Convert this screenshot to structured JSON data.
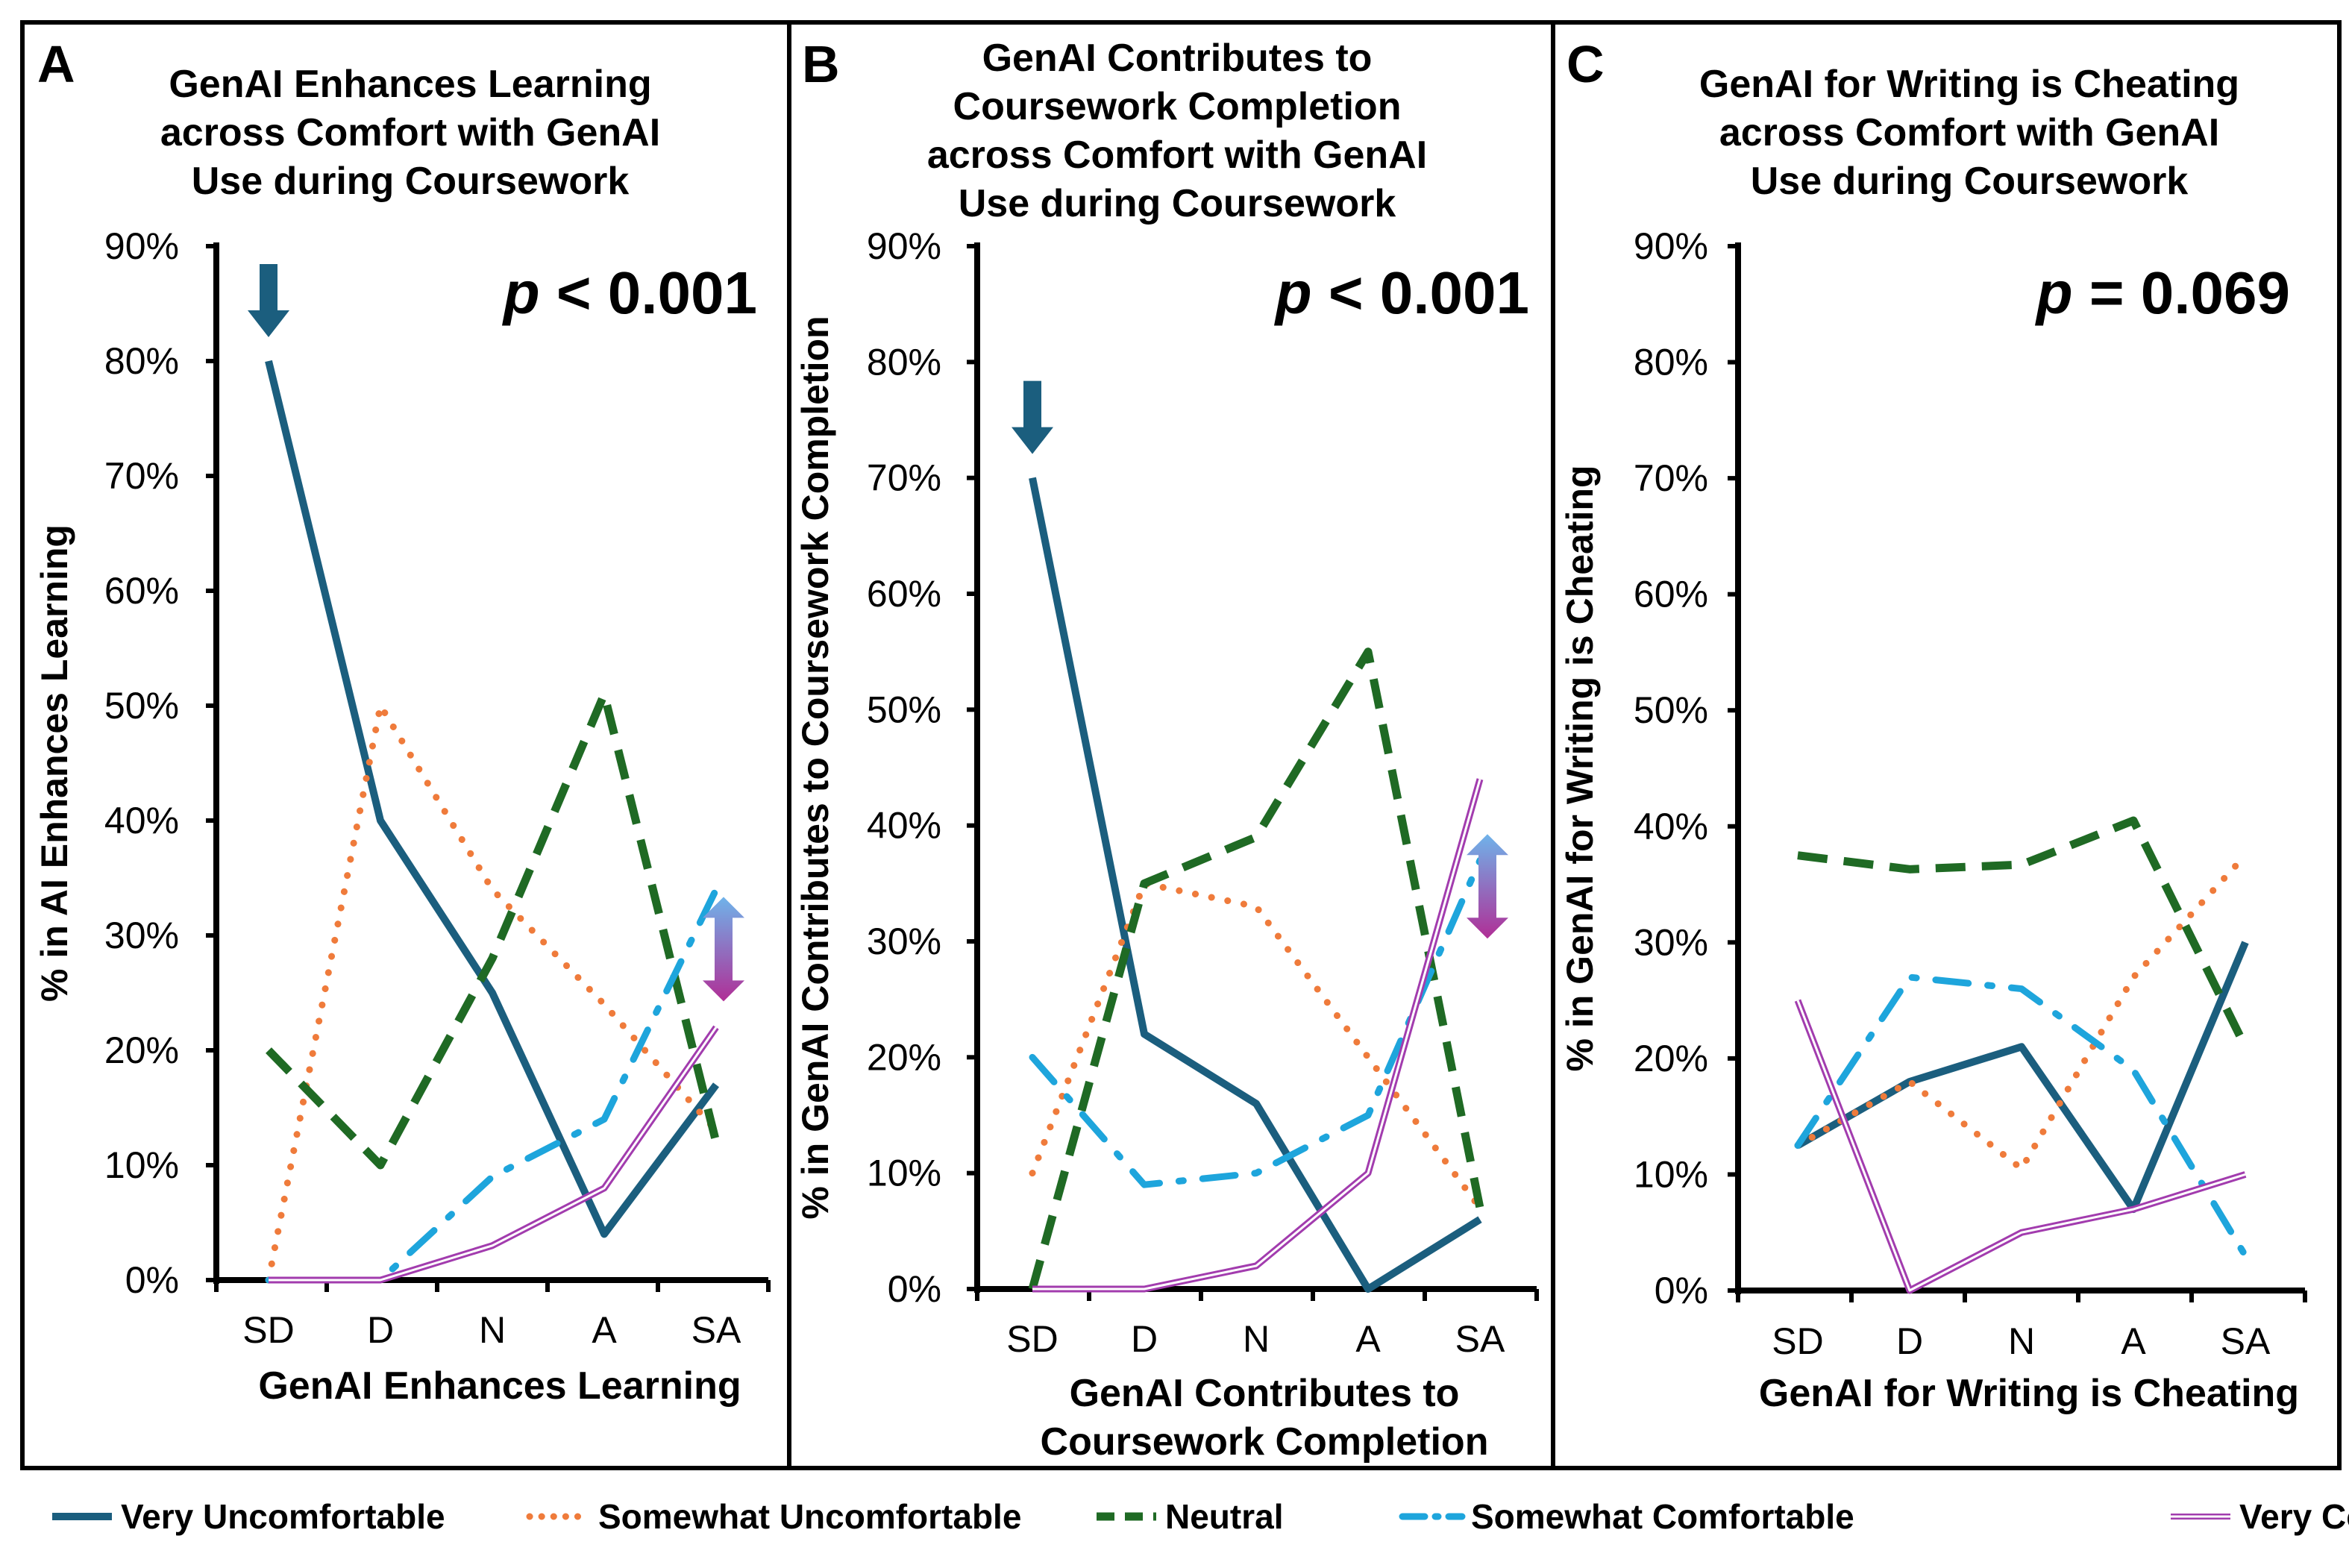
{
  "chart_data": [
    {
      "type": "line",
      "panel": "A",
      "title": [
        "GenAI Enhances Learning",
        "across Comfort with GenAI",
        "Use during Coursework"
      ],
      "xlabel": [
        "GenAI Enhances Learning"
      ],
      "ylabel": "% in AI Enhances Learning",
      "p_value": "< 0.001",
      "categories": [
        "SD",
        "D",
        "N",
        "A",
        "SA"
      ],
      "yticks": [
        "0%",
        "10%",
        "20%",
        "30%",
        "40%",
        "50%",
        "60%",
        "70%",
        "80%",
        "90%"
      ],
      "ylim": [
        0,
        90
      ],
      "series": [
        {
          "name": "Very Uncomfortable",
          "values": [
            80,
            40,
            25,
            4,
            17
          ]
        },
        {
          "name": "Somewhat Uncomfortable",
          "values": [
            0,
            50,
            34,
            24,
            13
          ]
        },
        {
          "name": "Neutral",
          "values": [
            20,
            10,
            28,
            51,
            12
          ]
        },
        {
          "name": "Somewhat Comfortable",
          "values": [
            0,
            0,
            9,
            14,
            34
          ]
        },
        {
          "name": "Very Comfortable",
          "values": [
            0,
            0,
            3,
            8,
            22
          ]
        }
      ]
    },
    {
      "type": "line",
      "panel": "B",
      "title": [
        "GenAI Contributes to",
        "Coursework Completion",
        "across Comfort with GenAI",
        "Use during Coursework"
      ],
      "xlabel": [
        "GenAI Contributes to",
        "Coursework Completion"
      ],
      "ylabel": "% in GenAI Contributes to Coursework Completion",
      "p_value": "< 0.001",
      "categories": [
        "SD",
        "D",
        "N",
        "A",
        "SA"
      ],
      "yticks": [
        "0%",
        "10%",
        "20%",
        "30%",
        "40%",
        "50%",
        "60%",
        "70%",
        "80%",
        "90%"
      ],
      "ylim": [
        0,
        90
      ],
      "series": [
        {
          "name": "Very Uncomfortable",
          "values": [
            70,
            22,
            16,
            0,
            6
          ]
        },
        {
          "name": "Somewhat Uncomfortable",
          "values": [
            10,
            35,
            33,
            20,
            7
          ]
        },
        {
          "name": "Neutral",
          "values": [
            0,
            35,
            39,
            55,
            7
          ]
        },
        {
          "name": "Somewhat Comfortable",
          "values": [
            20,
            9,
            10,
            15,
            37
          ]
        },
        {
          "name": "Very Comfortable",
          "values": [
            0,
            0,
            2,
            10,
            44
          ]
        }
      ]
    },
    {
      "type": "line",
      "panel": "C",
      "title": [
        "GenAI for Writing is Cheating",
        "across Comfort with GenAI",
        "Use during Coursework"
      ],
      "xlabel": [
        "GenAI for Writing is Cheating"
      ],
      "ylabel": "% in GenAI for Writing is Cheating",
      "p_value": "= 0.069",
      "categories": [
        "SD",
        "D",
        "N",
        "A",
        "SA"
      ],
      "yticks": [
        "0%",
        "10%",
        "20%",
        "30%",
        "40%",
        "50%",
        "60%",
        "70%",
        "80%",
        "90%"
      ],
      "ylim": [
        0,
        90
      ],
      "series": [
        {
          "name": "Very Uncomfortable",
          "values": [
            12.5,
            18,
            21,
            7,
            30
          ]
        },
        {
          "name": "Somewhat Uncomfortable",
          "values": [
            12.5,
            18,
            10.5,
            27,
            37.5
          ]
        },
        {
          "name": "Neutral",
          "values": [
            37.5,
            36.3,
            36.7,
            40.5,
            21
          ]
        },
        {
          "name": "Somewhat Comfortable",
          "values": [
            12.5,
            27,
            26,
            19,
            3
          ]
        },
        {
          "name": "Very Comfortable",
          "values": [
            25,
            0,
            5,
            7,
            10
          ]
        }
      ]
    }
  ],
  "legend": {
    "placement": "bottom",
    "entries": [
      "Very Uncomfortable",
      "Somewhat Uncomfortable",
      "Neutral",
      "Somewhat Comfortable",
      "Very Comfortable"
    ]
  },
  "colors": {
    "Very Uncomfortable": "#1b5e7e",
    "Somewhat Uncomfortable": "#ef7b3b",
    "Neutral": "#1f6a24",
    "Somewhat Comfortable": "#1ea5dc",
    "Very Comfortable": "#a23cae"
  },
  "p_label": "p"
}
